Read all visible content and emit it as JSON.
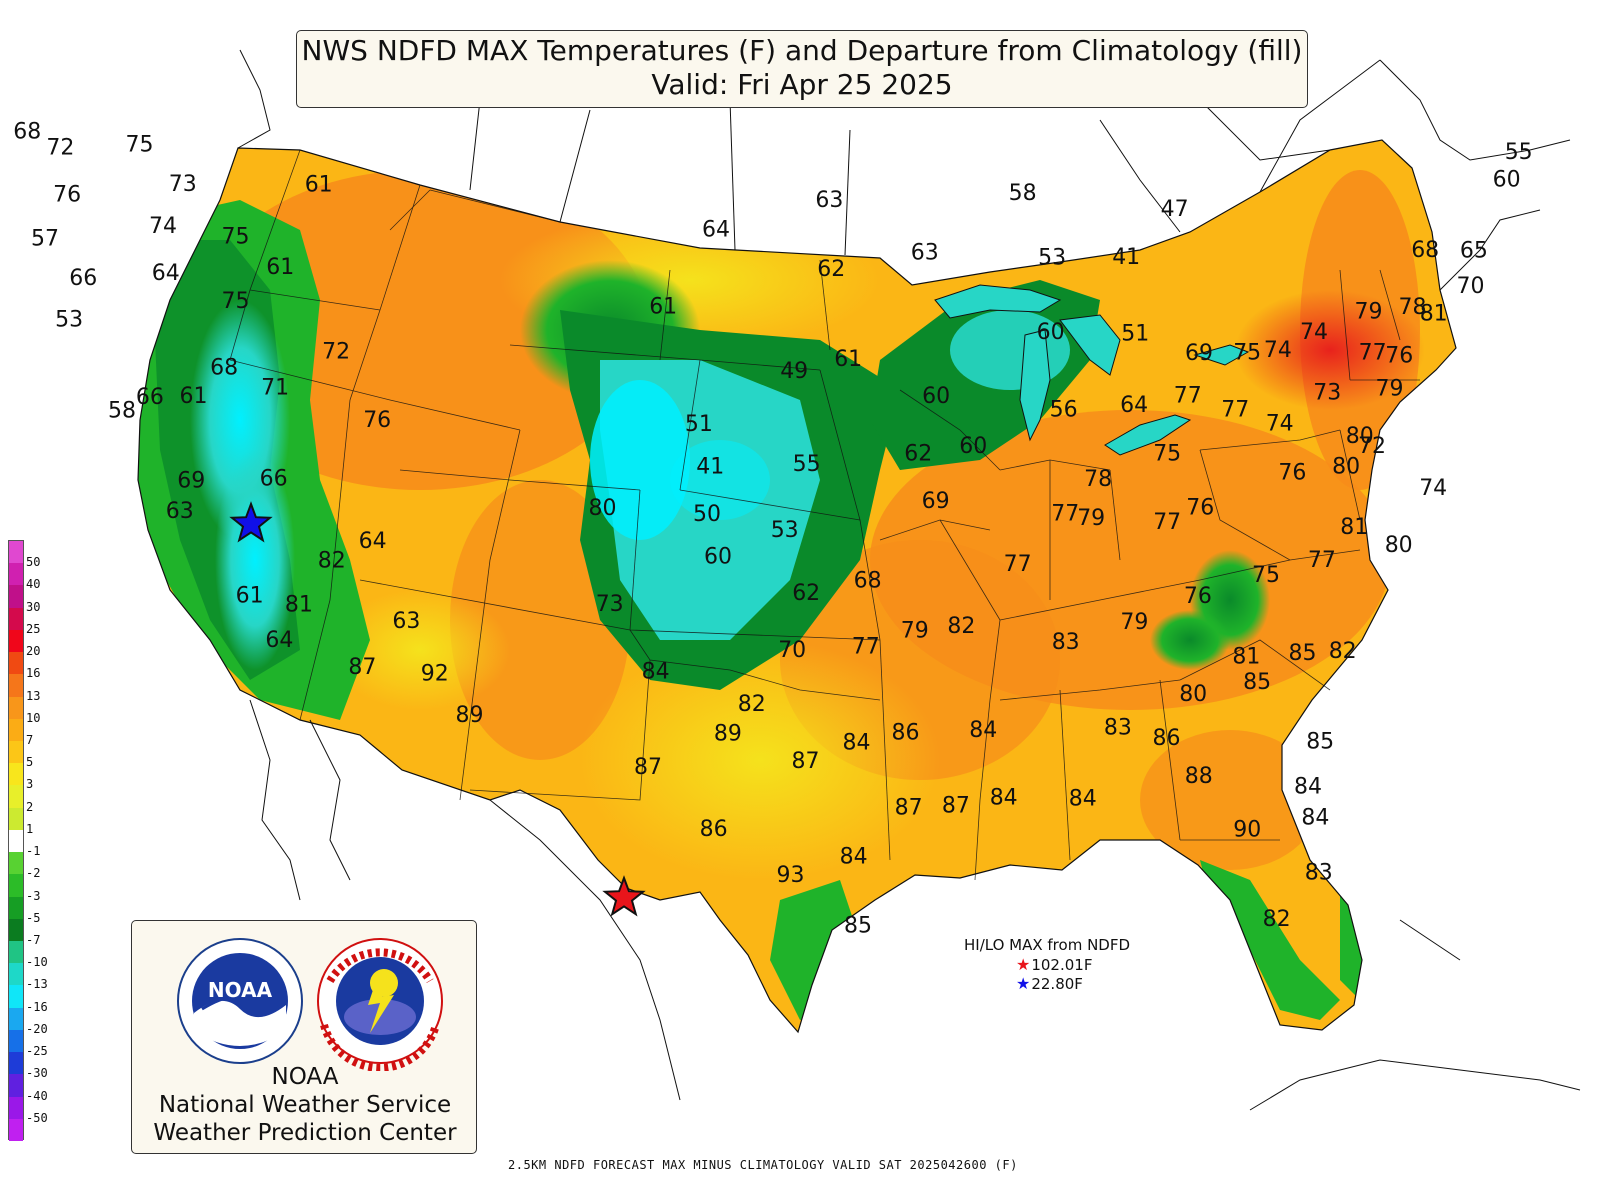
{
  "title": {
    "line1": "NWS NDFD MAX Temperatures (F) and Departure from Climatology (fill)",
    "line2": "Valid: Fri Apr 25 2025"
  },
  "colors": {
    "much_above": "#e8221c",
    "above": "#f78d1a",
    "slightly_above": "#fbb615",
    "near": "#f5e21c",
    "below": "#1fb32a",
    "much_below": "#0a8a2a",
    "cold": "#27d6c6",
    "coldest": "#00f0ff",
    "ocean": "#ffffff"
  },
  "legend": {
    "labels": [
      "50",
      "40",
      "30",
      "25",
      "20",
      "16",
      "13",
      "10",
      "7",
      "5",
      "3",
      "2",
      "1",
      "-1",
      "-2",
      "-3",
      "-5",
      "-7",
      "-10",
      "-13",
      "-16",
      "-20",
      "-25",
      "-30",
      "-40",
      "-50"
    ],
    "colors": [
      "#e048d0",
      "#d020b0",
      "#c0108a",
      "#d40a4c",
      "#f0061a",
      "#f04a12",
      "#f5761a",
      "#f8961a",
      "#fbac15",
      "#fcc617",
      "#f8e61c",
      "#e8ef2a",
      "#ccea30",
      "#ffffff",
      "#58d232",
      "#2cbc28",
      "#169e24",
      "#0b7c20",
      "#20c484",
      "#1ed8c8",
      "#10e6f8",
      "#1aa8f0",
      "#1670e8",
      "#1e3cd8",
      "#6020e0",
      "#9a18e8",
      "#c020f0"
    ]
  },
  "temperatures": [
    {
      "value": "68",
      "lon": -124.1,
      "lat": 48.3
    },
    {
      "value": "72",
      "lon": -123.0,
      "lat": 47.9
    },
    {
      "value": "75",
      "lon": -120.0,
      "lat": 48.3
    },
    {
      "value": "73",
      "lon": -118.7,
      "lat": 47.1
    },
    {
      "value": "61",
      "lon": -113.6,
      "lat": 47.5
    },
    {
      "value": "76",
      "lon": -123.2,
      "lat": 46.3
    },
    {
      "value": "74",
      "lon": -119.8,
      "lat": 45.6
    },
    {
      "value": "75",
      "lon": -117.1,
      "lat": 45.5
    },
    {
      "value": "57",
      "lon": -124.5,
      "lat": 44.7
    },
    {
      "value": "64",
      "lon": -120.1,
      "lat": 44.0
    },
    {
      "value": "61",
      "lon": -115.6,
      "lat": 44.6
    },
    {
      "value": "66",
      "lon": -123.4,
      "lat": 43.5
    },
    {
      "value": "75",
      "lon": -117.6,
      "lat": 43.3
    },
    {
      "value": "53",
      "lon": -124.4,
      "lat": 42.0
    },
    {
      "value": "72",
      "lon": -114.0,
      "lat": 41.9
    },
    {
      "value": "68",
      "lon": -118.6,
      "lat": 41.0
    },
    {
      "value": "71",
      "lon": -116.7,
      "lat": 40.5
    },
    {
      "value": "61",
      "lon": -120.1,
      "lat": 39.9
    },
    {
      "value": "66",
      "lon": -121.9,
      "lat": 39.7
    },
    {
      "value": "58",
      "lon": -123.2,
      "lat": 39.1
    },
    {
      "value": "76",
      "lon": -112.8,
      "lat": 39.7
    },
    {
      "value": "66",
      "lon": -117.5,
      "lat": 37.4
    },
    {
      "value": "69",
      "lon": -121.0,
      "lat": 37.0
    },
    {
      "value": "63",
      "lon": -121.8,
      "lat": 35.9
    },
    {
      "value": "64",
      "lon": -113.8,
      "lat": 35.6
    },
    {
      "value": "82",
      "lon": -115.7,
      "lat": 34.8
    },
    {
      "value": "61",
      "lon": -119.6,
      "lat": 33.3
    },
    {
      "value": "81",
      "lon": -117.5,
      "lat": 33.2
    },
    {
      "value": "64",
      "lon": -118.7,
      "lat": 31.9
    },
    {
      "value": "63",
      "lon": -112.9,
      "lat": 33.0
    },
    {
      "value": "87",
      "lon": -115.2,
      "lat": 31.3
    },
    {
      "value": "92",
      "lon": -112.0,
      "lat": 31.3
    },
    {
      "value": "89",
      "lon": -110.7,
      "lat": 30.0
    },
    {
      "value": "80",
      "lon": -104.0,
      "lat": 37.2
    },
    {
      "value": "73",
      "lon": -104.0,
      "lat": 34.0
    },
    {
      "value": "84",
      "lon": -102.2,
      "lat": 31.8
    },
    {
      "value": "89",
      "lon": -99.1,
      "lat": 29.8
    },
    {
      "value": "87",
      "lon": -102.8,
      "lat": 28.6
    },
    {
      "value": "86",
      "lon": -99.9,
      "lat": 26.6
    },
    {
      "value": "64",
      "lon": -99.0,
      "lat": 46.6
    },
    {
      "value": "61",
      "lon": -101.1,
      "lat": 44.0
    },
    {
      "value": "63",
      "lon": -94.8,
      "lat": 47.6
    },
    {
      "value": "62",
      "lon": -94.7,
      "lat": 45.3
    },
    {
      "value": "63",
      "lon": -91.2,
      "lat": 45.8
    },
    {
      "value": "58",
      "lon": -87.7,
      "lat": 47.7
    },
    {
      "value": "53",
      "lon": -86.4,
      "lat": 45.5
    },
    {
      "value": "47",
      "lon": -82.0,
      "lat": 46.9
    },
    {
      "value": "41",
      "lon": -83.6,
      "lat": 45.4
    },
    {
      "value": "49",
      "lon": -96.1,
      "lat": 41.9
    },
    {
      "value": "61",
      "lon": -94.0,
      "lat": 42.3
    },
    {
      "value": "60",
      "lon": -86.2,
      "lat": 43.0
    },
    {
      "value": "51",
      "lon": -82.9,
      "lat": 42.8
    },
    {
      "value": "60",
      "lon": -90.5,
      "lat": 41.0
    },
    {
      "value": "51",
      "lon": -99.9,
      "lat": 40.1
    },
    {
      "value": "41",
      "lon": -99.5,
      "lat": 38.7
    },
    {
      "value": "55",
      "lon": -95.6,
      "lat": 38.8
    },
    {
      "value": "62",
      "lon": -91.1,
      "lat": 39.1
    },
    {
      "value": "60",
      "lon": -88.9,
      "lat": 39.3
    },
    {
      "value": "56",
      "lon": -85.4,
      "lat": 40.4
    },
    {
      "value": "64",
      "lon": -82.6,
      "lat": 40.4
    },
    {
      "value": "69",
      "lon": -80.3,
      "lat": 42.0
    },
    {
      "value": "75",
      "lon": -78.4,
      "lat": 41.9
    },
    {
      "value": "74",
      "lon": -77.2,
      "lat": 41.9
    },
    {
      "value": "50",
      "lon": -99.7,
      "lat": 37.1
    },
    {
      "value": "53",
      "lon": -96.5,
      "lat": 36.6
    },
    {
      "value": "60",
      "lon": -99.3,
      "lat": 35.7
    },
    {
      "value": "62",
      "lon": -95.6,
      "lat": 34.5
    },
    {
      "value": "68",
      "lon": -93.0,
      "lat": 34.9
    },
    {
      "value": "69",
      "lon": -90.3,
      "lat": 37.5
    },
    {
      "value": "70",
      "lon": -96.2,
      "lat": 32.6
    },
    {
      "value": "77",
      "lon": -93.0,
      "lat": 32.7
    },
    {
      "value": "79",
      "lon": -90.9,
      "lat": 33.2
    },
    {
      "value": "82",
      "lon": -98.0,
      "lat": 30.8
    },
    {
      "value": "82",
      "lon": -88.9,
      "lat": 33.3
    },
    {
      "value": "87",
      "lon": -95.6,
      "lat": 28.9
    },
    {
      "value": "84",
      "lon": -93.3,
      "lat": 29.5
    },
    {
      "value": "86",
      "lon": -91.1,
      "lat": 29.8
    },
    {
      "value": "84",
      "lon": -87.6,
      "lat": 29.8
    },
    {
      "value": "93",
      "lon": -96.3,
      "lat": 25.1
    },
    {
      "value": "84",
      "lon": -93.3,
      "lat": 25.7
    },
    {
      "value": "85",
      "lon": -93.0,
      "lat": 23.4
    },
    {
      "value": "87",
      "lon": -90.8,
      "lat": 27.3
    },
    {
      "value": "87",
      "lon": -88.6,
      "lat": 27.3
    },
    {
      "value": "84",
      "lon": -86.4,
      "lat": 27.5
    },
    {
      "value": "84",
      "lon": -82.7,
      "lat": 27.3
    },
    {
      "value": "77",
      "lon": -84.9,
      "lat": 36.9
    },
    {
      "value": "77",
      "lon": -86.7,
      "lat": 35.3
    },
    {
      "value": "79",
      "lon": -83.8,
      "lat": 36.7
    },
    {
      "value": "78",
      "lon": -83.7,
      "lat": 38.0
    },
    {
      "value": "75",
      "lon": -81.0,
      "lat": 38.7
    },
    {
      "value": "77",
      "lon": -80.5,
      "lat": 40.6
    },
    {
      "value": "77",
      "lon": -78.5,
      "lat": 40.0
    },
    {
      "value": "76",
      "lon": -79.3,
      "lat": 36.8
    },
    {
      "value": "77",
      "lon": -80.6,
      "lat": 36.4
    },
    {
      "value": "76",
      "lon": -75.7,
      "lat": 37.7
    },
    {
      "value": "72",
      "lon": -72.6,
      "lat": 38.3
    },
    {
      "value": "83",
      "lon": -84.3,
      "lat": 32.6
    },
    {
      "value": "79",
      "lon": -81.4,
      "lat": 33.1
    },
    {
      "value": "76",
      "lon": -78.8,
      "lat": 33.8
    },
    {
      "value": "75",
      "lon": -76.0,
      "lat": 34.3
    },
    {
      "value": "77",
      "lon": -73.7,
      "lat": 34.6
    },
    {
      "value": "81",
      "lon": -72.6,
      "lat": 35.6
    },
    {
      "value": "80",
      "lon": -70.5,
      "lat": 34.8
    },
    {
      "value": "74",
      "lon": -69.6,
      "lat": 36.6
    },
    {
      "value": "83",
      "lon": -81.5,
      "lat": 29.6
    },
    {
      "value": "80",
      "lon": -78.3,
      "lat": 30.5
    },
    {
      "value": "86",
      "lon": -79.2,
      "lat": 29.1
    },
    {
      "value": "81",
      "lon": -76.2,
      "lat": 31.6
    },
    {
      "value": "85",
      "lon": -75.5,
      "lat": 30.7
    },
    {
      "value": "85",
      "lon": -73.7,
      "lat": 31.5
    },
    {
      "value": "82",
      "lon": -71.9,
      "lat": 31.4
    },
    {
      "value": "88",
      "lon": -77.4,
      "lat": 27.7
    },
    {
      "value": "85",
      "lon": -72.0,
      "lat": 28.4
    },
    {
      "value": "84",
      "lon": -72.1,
      "lat": 26.9
    },
    {
      "value": "84",
      "lon": -71.4,
      "lat": 25.8
    },
    {
      "value": "90",
      "lon": -74.6,
      "lat": 25.7
    },
    {
      "value": "83",
      "lon": -70.6,
      "lat": 23.9
    },
    {
      "value": "82",
      "lon": -72.2,
      "lat": 22.5
    },
    {
      "value": "55",
      "lon": -69.5,
      "lat": 47.8
    },
    {
      "value": "60",
      "lon": -69.7,
      "lat": 46.9
    },
    {
      "value": "68",
      "lon": -72.2,
      "lat": 44.8
    },
    {
      "value": "65",
      "lon": -70.3,
      "lat": 44.6
    },
    {
      "value": "70",
      "lon": -70.1,
      "lat": 43.4
    },
    {
      "value": "78",
      "lon": -72.2,
      "lat": 42.9
    },
    {
      "value": "79",
      "lon": -73.9,
      "lat": 42.9
    },
    {
      "value": "81",
      "lon": -71.3,
      "lat": 42.6
    },
    {
      "value": "74",
      "lon": -75.9,
      "lat": 42.4
    },
    {
      "value": "77",
      "lon": -73.4,
      "lat": 41.5
    },
    {
      "value": "76",
      "lon": -72.3,
      "lat": 41.3
    },
    {
      "value": "73",
      "lon": -74.9,
      "lat": 40.3
    },
    {
      "value": "79",
      "lon": -72.4,
      "lat": 40.2
    },
    {
      "value": "74",
      "lon": -76.6,
      "lat": 39.4
    },
    {
      "value": "80",
      "lon": -73.2,
      "lat": 38.7
    },
    {
      "value": "80",
      "lon": -73.5,
      "lat": 37.7
    }
  ],
  "extremes": {
    "high_marker_color": "#e8151b",
    "low_marker_color": "#1010e8"
  },
  "hilo": {
    "title": "HI/LO MAX from NDFD",
    "high": "102.01F",
    "low": "22.80F"
  },
  "org": {
    "line1": "NOAA",
    "line2": "National Weather Service",
    "line3": "Weather Prediction Center"
  },
  "footer": "2.5KM NDFD FORECAST MAX MINUS CLIMATOLOGY VALID SAT 2025042600 (F)"
}
